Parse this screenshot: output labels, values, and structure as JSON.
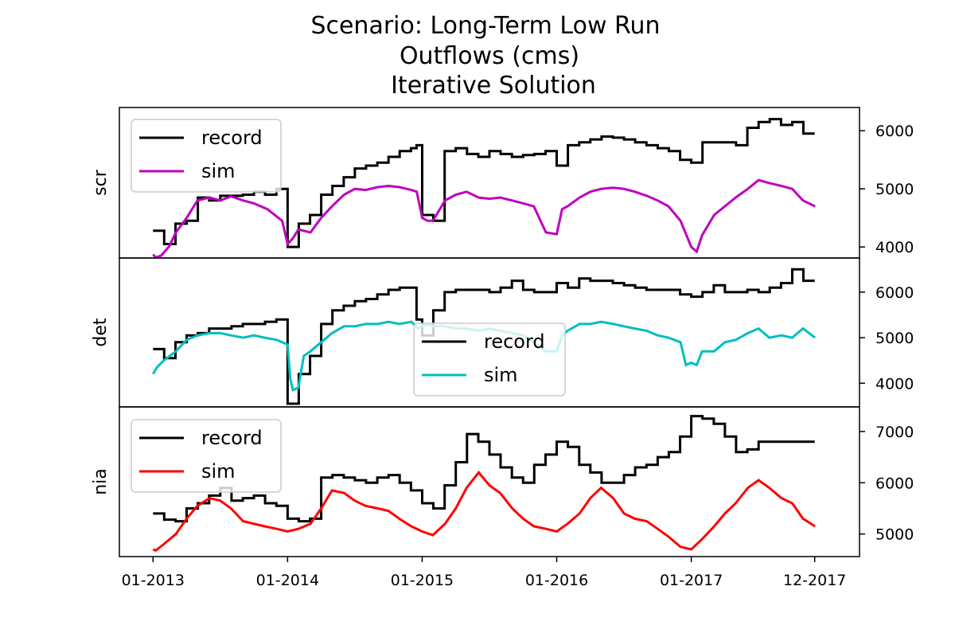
{
  "chart_title": {
    "line1": "Scenario: Long-Term Low Run",
    "line2": "Outflows (cms)",
    "line3": "Iterative Solution"
  },
  "chart_data": {
    "type": "line",
    "title": [
      "Scenario: Long-Term Low Run",
      "Outflows (cms)",
      "Iterative Solution"
    ],
    "x_tick_labels": [
      "01-2013",
      "01-2014",
      "01-2015",
      "01-2016",
      "01-2017",
      "12-2017"
    ],
    "x_tick_values": [
      2013.0,
      2014.0,
      2015.0,
      2016.0,
      2017.0,
      2017.917
    ],
    "xlim": [
      2012.75,
      2018.25
    ],
    "grid": false,
    "panels": [
      {
        "ylabel": "scr",
        "ylim": [
          3810,
          6400
        ],
        "y_ticks": [
          4000,
          5000,
          6000
        ],
        "y_tick_labels": [
          "4000",
          "5000",
          "6000"
        ],
        "legend_position": "upper left",
        "series": [
          {
            "name": "record",
            "color": "#000000",
            "step": true,
            "x": [
              2013.0,
              2013.083,
              2013.167,
              2013.25,
              2013.333,
              2013.417,
              2013.5,
              2013.583,
              2013.667,
              2013.75,
              2013.833,
              2013.917,
              2014.0,
              2014.083,
              2014.167,
              2014.25,
              2014.333,
              2014.417,
              2014.5,
              2014.583,
              2014.667,
              2014.75,
              2014.833,
              2014.917,
              2014.958,
              2015.0,
              2015.083,
              2015.167,
              2015.25,
              2015.333,
              2015.417,
              2015.5,
              2015.583,
              2015.667,
              2015.75,
              2015.833,
              2015.917,
              2016.0,
              2016.083,
              2016.167,
              2016.25,
              2016.333,
              2016.417,
              2016.5,
              2016.583,
              2016.667,
              2016.75,
              2016.833,
              2016.917,
              2017.0,
              2017.083,
              2017.167,
              2017.25,
              2017.333,
              2017.417,
              2017.5,
              2017.583,
              2017.667,
              2017.75,
              2017.833,
              2017.917
            ],
            "y": [
              4280,
              4050,
              4400,
              4450,
              4850,
              4800,
              4880,
              4880,
              4900,
              4950,
              4900,
              5000,
              4000,
              4400,
              4550,
              4900,
              5050,
              5200,
              5350,
              5400,
              5450,
              5550,
              5650,
              5700,
              5750,
              4550,
              4450,
              5650,
              5700,
              5600,
              5550,
              5650,
              5600,
              5550,
              5580,
              5600,
              5650,
              5400,
              5750,
              5800,
              5850,
              5900,
              5880,
              5850,
              5800,
              5750,
              5700,
              5650,
              5500,
              5450,
              5800,
              5800,
              5800,
              5750,
              6050,
              6150,
              6200,
              6100,
              6150,
              5950,
              5950
            ]
          },
          {
            "name": "sim",
            "color": "#bf00bf",
            "step": false,
            "x": [
              2013.0,
              2013.02,
              2013.06,
              2013.12,
              2013.17,
              2013.25,
              2013.33,
              2013.42,
              2013.5,
              2013.58,
              2013.67,
              2013.75,
              2013.85,
              2013.96,
              2014.0,
              2014.04,
              2014.08,
              2014.17,
              2014.25,
              2014.33,
              2014.42,
              2014.5,
              2014.58,
              2014.67,
              2014.75,
              2014.83,
              2014.92,
              2014.96,
              2015.0,
              2015.04,
              2015.08,
              2015.17,
              2015.25,
              2015.33,
              2015.42,
              2015.5,
              2015.58,
              2015.67,
              2015.75,
              2015.83,
              2015.92,
              2016.0,
              2016.04,
              2016.08,
              2016.17,
              2016.25,
              2016.33,
              2016.42,
              2016.5,
              2016.58,
              2016.67,
              2016.75,
              2016.83,
              2016.92,
              2017.0,
              2017.04,
              2017.08,
              2017.17,
              2017.25,
              2017.33,
              2017.42,
              2017.5,
              2017.58,
              2017.67,
              2017.75,
              2017.83,
              2017.92
            ],
            "y": [
              3870,
              3820,
              3850,
              4010,
              4250,
              4500,
              4800,
              4850,
              4800,
              4870,
              4800,
              4750,
              4650,
              4450,
              4050,
              4150,
              4300,
              4250,
              4500,
              4700,
              4900,
              5000,
              4980,
              5030,
              5050,
              5030,
              4980,
              4950,
              4500,
              4450,
              4450,
              4800,
              4900,
              4950,
              4850,
              4830,
              4850,
              4800,
              4750,
              4700,
              4250,
              4220,
              4650,
              4700,
              4850,
              4950,
              5000,
              5020,
              5000,
              4950,
              4880,
              4800,
              4700,
              4450,
              4000,
              3920,
              4200,
              4550,
              4700,
              4850,
              5000,
              5150,
              5100,
              5050,
              5000,
              4800,
              4700
            ]
          }
        ]
      },
      {
        "ylabel": "det",
        "ylim": [
          3480,
          6750
        ],
        "y_ticks": [
          4000,
          5000,
          6000
        ],
        "y_tick_labels": [
          "4000",
          "5000",
          "6000"
        ],
        "legend_position": "lower center",
        "series": [
          {
            "name": "record",
            "color": "#000000",
            "step": true,
            "x": [
              2013.0,
              2013.083,
              2013.167,
              2013.25,
              2013.333,
              2013.417,
              2013.5,
              2013.583,
              2013.667,
              2013.75,
              2013.833,
              2013.917,
              2014.0,
              2014.083,
              2014.167,
              2014.25,
              2014.333,
              2014.417,
              2014.5,
              2014.583,
              2014.667,
              2014.75,
              2014.833,
              2014.917,
              2014.958,
              2015.0,
              2015.083,
              2015.167,
              2015.25,
              2015.333,
              2015.417,
              2015.5,
              2015.583,
              2015.667,
              2015.75,
              2015.833,
              2015.917,
              2016.0,
              2016.083,
              2016.167,
              2016.25,
              2016.333,
              2016.417,
              2016.5,
              2016.583,
              2016.667,
              2016.75,
              2016.833,
              2016.917,
              2017.0,
              2017.083,
              2017.167,
              2017.25,
              2017.333,
              2017.417,
              2017.5,
              2017.583,
              2017.667,
              2017.75,
              2017.833,
              2017.917
            ],
            "y": [
              4750,
              4550,
              4900,
              5050,
              5100,
              5200,
              5200,
              5250,
              5300,
              5300,
              5350,
              5400,
              3550,
              4200,
              4600,
              5300,
              5600,
              5700,
              5800,
              5850,
              5950,
              6050,
              6100,
              6100,
              5400,
              5050,
              5600,
              6000,
              6050,
              6050,
              6050,
              6000,
              6100,
              6250,
              6050,
              6000,
              6000,
              6200,
              6100,
              6300,
              6250,
              6250,
              6200,
              6150,
              6100,
              6050,
              6050,
              6050,
              5950,
              5900,
              6000,
              6150,
              6000,
              6000,
              6050,
              6000,
              6100,
              6200,
              6500,
              6250,
              6250
            ]
          },
          {
            "name": "sim",
            "color": "#00bfbf",
            "step": false,
            "x": [
              2013.0,
              2013.03,
              2013.08,
              2013.17,
              2013.25,
              2013.33,
              2013.42,
              2013.5,
              2013.58,
              2013.67,
              2013.75,
              2013.83,
              2013.92,
              2014.0,
              2014.02,
              2014.04,
              2014.08,
              2014.12,
              2014.17,
              2014.25,
              2014.33,
              2014.42,
              2014.5,
              2014.58,
              2014.67,
              2014.75,
              2014.83,
              2014.92,
              2014.97,
              2015.0,
              2015.05,
              2015.08,
              2015.17,
              2015.25,
              2015.33,
              2015.42,
              2015.5,
              2015.58,
              2015.67,
              2015.75,
              2015.83,
              2015.92,
              2016.0,
              2016.04,
              2016.08,
              2016.17,
              2016.25,
              2016.33,
              2016.42,
              2016.5,
              2016.58,
              2016.67,
              2016.75,
              2016.83,
              2016.92,
              2016.96,
              2017.0,
              2017.04,
              2017.08,
              2017.17,
              2017.25,
              2017.33,
              2017.42,
              2017.5,
              2017.58,
              2017.67,
              2017.75,
              2017.83,
              2017.92
            ],
            "y": [
              4200,
              4350,
              4500,
              4700,
              4950,
              5050,
              5100,
              5100,
              5050,
              5000,
              5050,
              5000,
              4950,
              4850,
              4100,
              3850,
              3900,
              4600,
              4700,
              4900,
              5100,
              5250,
              5250,
              5300,
              5300,
              5350,
              5300,
              5350,
              5200,
              5250,
              5300,
              5250,
              5250,
              5200,
              5200,
              5150,
              5200,
              5150,
              5100,
              5050,
              4900,
              4700,
              4700,
              5050,
              5150,
              5300,
              5300,
              5350,
              5300,
              5250,
              5200,
              5150,
              5050,
              5000,
              4900,
              4400,
              4450,
              4400,
              4700,
              4700,
              4900,
              4950,
              5100,
              5200,
              5000,
              5050,
              5000,
              5200,
              5000
            ]
          }
        ]
      },
      {
        "ylabel": "nia",
        "ylim": [
          4560,
          7480
        ],
        "y_ticks": [
          5000,
          6000,
          7000
        ],
        "y_tick_labels": [
          "5000",
          "6000",
          "7000"
        ],
        "legend_position": "upper left",
        "series": [
          {
            "name": "record",
            "color": "#000000",
            "step": true,
            "x": [
              2013.0,
              2013.083,
              2013.167,
              2013.25,
              2013.333,
              2013.417,
              2013.5,
              2013.583,
              2013.667,
              2013.75,
              2013.833,
              2013.917,
              2014.0,
              2014.083,
              2014.167,
              2014.25,
              2014.333,
              2014.417,
              2014.5,
              2014.583,
              2014.667,
              2014.75,
              2014.833,
              2014.917,
              2015.0,
              2015.083,
              2015.167,
              2015.25,
              2015.333,
              2015.417,
              2015.5,
              2015.583,
              2015.667,
              2015.75,
              2015.833,
              2015.917,
              2016.0,
              2016.083,
              2016.167,
              2016.25,
              2016.333,
              2016.417,
              2016.5,
              2016.583,
              2016.667,
              2016.75,
              2016.833,
              2016.917,
              2017.0,
              2017.083,
              2017.167,
              2017.25,
              2017.333,
              2017.417,
              2017.5,
              2017.583,
              2017.667,
              2017.75,
              2017.833,
              2017.917
            ],
            "y": [
              5400,
              5280,
              5250,
              5500,
              5600,
              5750,
              5900,
              5650,
              5700,
              5750,
              5600,
              5550,
              5300,
              5250,
              5300,
              6100,
              6150,
              6100,
              6050,
              6000,
              6100,
              6150,
              6000,
              5850,
              5600,
              5500,
              5950,
              6400,
              6950,
              6800,
              6550,
              6300,
              6100,
              6000,
              6350,
              6550,
              6800,
              6700,
              6350,
              6200,
              6000,
              6000,
              6150,
              6300,
              6350,
              6500,
              6600,
              6900,
              7300,
              7250,
              7150,
              6900,
              6600,
              6650,
              6800,
              6800,
              6800,
              6800,
              6800,
              6800
            ]
          },
          {
            "name": "sim",
            "color": "#ff0000",
            "step": false,
            "x": [
              2013.0,
              2013.02,
              2013.08,
              2013.17,
              2013.25,
              2013.33,
              2013.42,
              2013.5,
              2013.58,
              2013.67,
              2013.75,
              2013.83,
              2013.92,
              2014.0,
              2014.08,
              2014.17,
              2014.25,
              2014.33,
              2014.42,
              2014.5,
              2014.58,
              2014.67,
              2014.75,
              2014.83,
              2014.92,
              2015.0,
              2015.08,
              2015.17,
              2015.25,
              2015.33,
              2015.42,
              2015.5,
              2015.58,
              2015.67,
              2015.75,
              2015.83,
              2015.92,
              2016.0,
              2016.08,
              2016.17,
              2016.25,
              2016.33,
              2016.42,
              2016.5,
              2016.58,
              2016.67,
              2016.75,
              2016.83,
              2016.92,
              2017.0,
              2017.08,
              2017.17,
              2017.25,
              2017.33,
              2017.42,
              2017.5,
              2017.58,
              2017.67,
              2017.75,
              2017.83,
              2017.92
            ],
            "y": [
              4700,
              4680,
              4800,
              5000,
              5300,
              5550,
              5700,
              5650,
              5500,
              5250,
              5200,
              5150,
              5100,
              5050,
              5100,
              5200,
              5500,
              5850,
              5800,
              5650,
              5550,
              5500,
              5450,
              5300,
              5150,
              5050,
              4980,
              5200,
              5500,
              5900,
              6200,
              5950,
              5800,
              5500,
              5300,
              5150,
              5100,
              5050,
              5200,
              5400,
              5700,
              5900,
              5700,
              5400,
              5300,
              5250,
              5100,
              4950,
              4750,
              4700,
              4900,
              5150,
              5400,
              5600,
              5900,
              6050,
              5900,
              5700,
              5600,
              5300,
              5150
            ]
          }
        ]
      }
    ]
  }
}
